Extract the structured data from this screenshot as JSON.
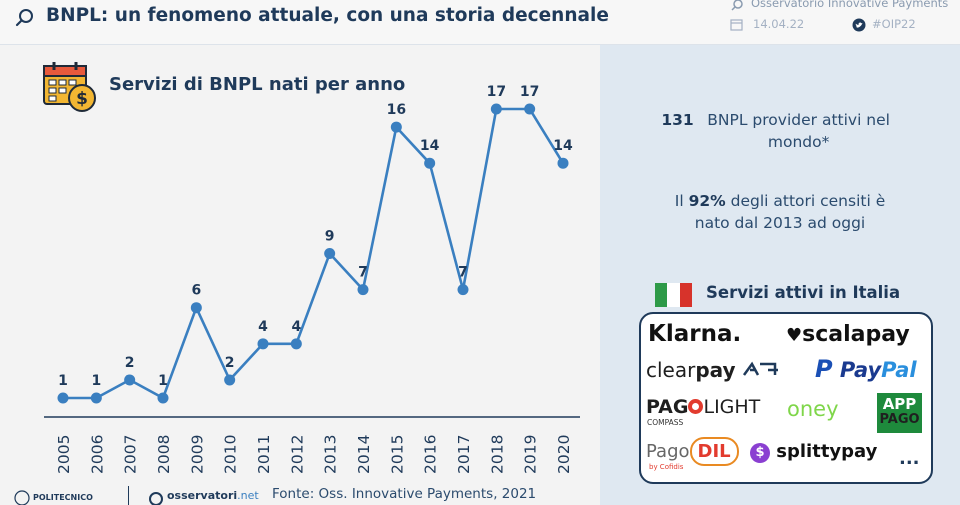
{
  "header": {
    "title": "BNPL: un fenomeno attuale, con una storia decennale",
    "observatory": "Osservatorio Innovative Payments",
    "date": "14.04.22",
    "hashtag": "#OIP22"
  },
  "chart_data": {
    "type": "line",
    "title": "Servizi di BNPL nati per anno",
    "categories": [
      "2005",
      "2006",
      "2007",
      "2008",
      "2009",
      "2010",
      "2011",
      "2012",
      "2013",
      "2014",
      "2015",
      "2016",
      "2017",
      "2018",
      "2019",
      "2020"
    ],
    "values": [
      1,
      1,
      2,
      1,
      6,
      2,
      4,
      4,
      9,
      7,
      16,
      14,
      7,
      17,
      17,
      14
    ],
    "ylim": [
      0,
      18
    ],
    "grid": false,
    "line_color": "#3a7fc0"
  },
  "stats": {
    "providers_number": "131",
    "providers_text": "BNPL provider attivi nel mondo*",
    "percent_prefix": "Il",
    "percent_value": "92%",
    "percent_text": "degli attori censiti è nato dal 2013 ad oggi"
  },
  "italy": {
    "title": "Servizi attivi in Italia",
    "flag_colors": [
      "#2e9a48",
      "#ffffff",
      "#d7332b"
    ],
    "logos": {
      "klarna": "Klarna.",
      "scalapay": "scalapay",
      "clearpay_a": "clear",
      "clearpay_b": "pay",
      "paypal_a": "Pay",
      "paypal_b": "Pal",
      "pagolight_a": "PAG",
      "pagolight_b": "LIGHT",
      "pagolight_sub": "COMPASS",
      "oney": "oney",
      "app_pago_1": "APP",
      "app_pago_2": "PAGO",
      "pagodil_a": "Pago",
      "pagodil_b": "DIL",
      "pagodil_sub": "by Cofidis",
      "splittypay": "splittypay",
      "more": "..."
    }
  },
  "footer": {
    "source": "Fonte: Oss. Innovative Payments, 2021",
    "polimi": "POLITECNICO",
    "osservatori_a": "osservatori",
    "osservatori_b": ".net"
  }
}
